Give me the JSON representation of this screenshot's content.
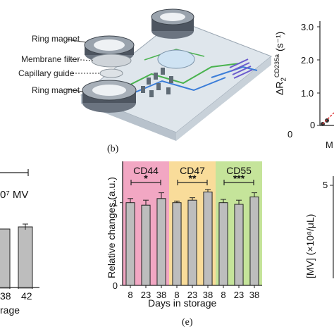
{
  "device_labels": {
    "ring_magnet_top": "Ring magnet",
    "membrane_filter": "Membrane filter",
    "capillary_guide": "Capillary guide",
    "ring_magnet_bottom": "Ring magnet"
  },
  "panel_labels": {
    "b": "(b)",
    "e": "(e)"
  },
  "top_right_axis": {
    "ylabel_delta": "ΔR",
    "ylabel_sub": "2",
    "ylabel_sup": "CD235a",
    "ylabel_unit": "(s⁻¹)",
    "ticks": [
      "3.0",
      "2.0",
      "1.0",
      "0"
    ],
    "x_tick": "0",
    "x_cut": "M"
  },
  "left_fragment": {
    "annotation": "0⁷ MV",
    "x_ticks": [
      "38",
      "42"
    ],
    "xlabel_fragment": "rage"
  },
  "right_fragment": {
    "ylabel": "[MV] (×10⁸/μL)",
    "tick_top": "5"
  },
  "chart_data": {
    "type": "bar",
    "ylabel": "Relative changes (a.u.)",
    "xlabel": "Days in storage",
    "ylim": [
      0,
      1.5
    ],
    "yticks": [
      "0",
      "1"
    ],
    "groups": [
      {
        "name": "CD44",
        "color": "#f2a7c3",
        "categories": [
          "8",
          "23",
          "38"
        ],
        "values": [
          1.0,
          0.97,
          1.05
        ],
        "errors": [
          0.05,
          0.06,
          0.07
        ],
        "significance": "*"
      },
      {
        "name": "CD47",
        "color": "#f9dc9a",
        "categories": [
          "8",
          "23",
          "38"
        ],
        "values": [
          1.0,
          1.03,
          1.13
        ],
        "errors": [
          0.02,
          0.03,
          0.03
        ],
        "significance": "**"
      },
      {
        "name": "CD55",
        "color": "#c5e49a",
        "categories": [
          "8",
          "23",
          "38"
        ],
        "values": [
          1.0,
          0.98,
          1.07
        ],
        "errors": [
          0.04,
          0.05,
          0.05
        ],
        "significance": "***"
      }
    ]
  }
}
